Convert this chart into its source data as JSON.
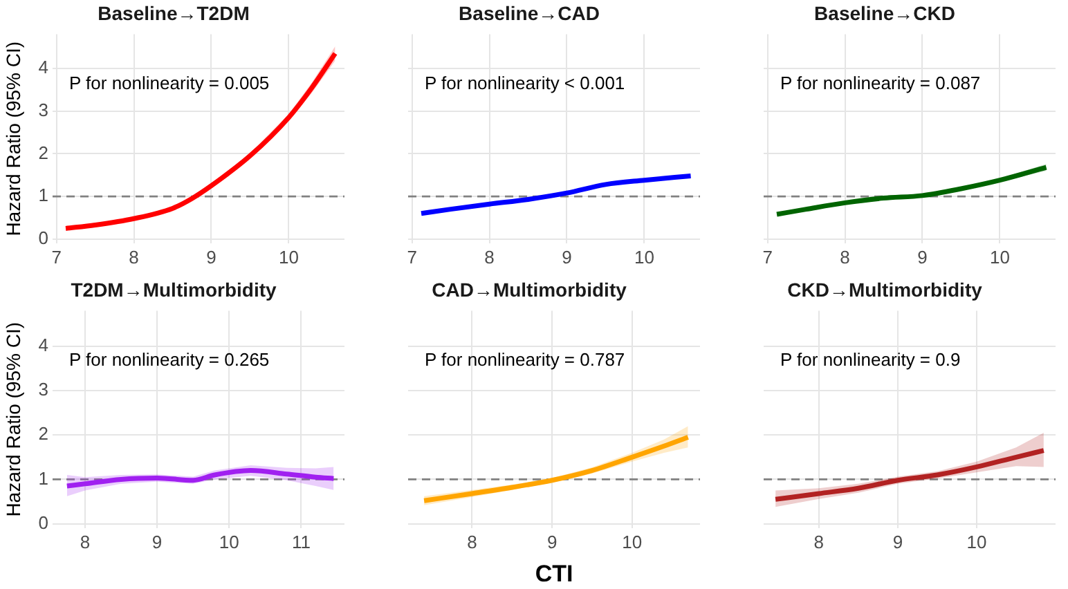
{
  "chart_data": [
    {
      "type": "line",
      "title": "Baseline→T2DM",
      "ylabel": "Hazard Ratio (95% CI)",
      "xlim": [
        6.95,
        10.72
      ],
      "xticks": [
        7,
        8,
        9,
        10
      ],
      "ylim": [
        -0.1,
        4.8
      ],
      "yticks": [
        0,
        1,
        2,
        3,
        4
      ],
      "grid": true,
      "annotations": [
        "P for nonlinearity = 0.005"
      ],
      "ref_lines": [
        {
          "axis": "y",
          "value": 1,
          "color": "#808080",
          "line_style": "dashed"
        }
      ],
      "x": [
        7.12,
        7.5,
        8,
        8.5,
        8.75,
        9,
        9.5,
        10,
        10.3,
        10.6
      ],
      "series": [
        {
          "color": "#ff0000",
          "values": [
            0.25,
            0.33,
            0.48,
            0.72,
            0.95,
            1.25,
            1.95,
            2.85,
            3.55,
            4.35
          ],
          "lower": [
            0.22,
            0.3,
            0.45,
            0.69,
            0.92,
            1.21,
            1.89,
            2.77,
            3.43,
            4.18
          ],
          "upper": [
            0.28,
            0.36,
            0.51,
            0.75,
            0.98,
            1.29,
            2.01,
            2.93,
            3.67,
            4.52
          ]
        }
      ]
    },
    {
      "type": "line",
      "title": "Baseline→CAD",
      "xlim": [
        6.95,
        10.72
      ],
      "xticks": [
        7,
        8,
        9,
        10
      ],
      "ylim": [
        -0.1,
        4.8
      ],
      "yticks": [
        0,
        1,
        2,
        3,
        4
      ],
      "grid": true,
      "tick_labels": "x",
      "annotations": [
        "P for nonlinearity < 0.001"
      ],
      "ref_lines": [
        {
          "axis": "y",
          "value": 1,
          "color": "#808080",
          "line_style": "dashed"
        }
      ],
      "x": [
        7.12,
        7.5,
        8,
        8.5,
        9,
        9.5,
        10,
        10.6
      ],
      "series": [
        {
          "color": "#0000ff",
          "values": [
            0.6,
            0.7,
            0.82,
            0.93,
            1.08,
            1.28,
            1.38,
            1.48
          ],
          "lower": [
            0.57,
            0.67,
            0.8,
            0.91,
            1.06,
            1.25,
            1.35,
            1.43
          ],
          "upper": [
            0.63,
            0.73,
            0.84,
            0.95,
            1.1,
            1.31,
            1.41,
            1.53
          ]
        }
      ]
    },
    {
      "type": "line",
      "title": "Baseline→CKD",
      "xlim": [
        6.95,
        10.72
      ],
      "xticks": [
        7,
        8,
        9,
        10
      ],
      "ylim": [
        -0.1,
        4.8
      ],
      "yticks": [
        0,
        1,
        2,
        3,
        4
      ],
      "grid": true,
      "tick_labels": "x",
      "annotations": [
        "P for nonlinearity = 0.087"
      ],
      "ref_lines": [
        {
          "axis": "y",
          "value": 1,
          "color": "#808080",
          "line_style": "dashed"
        }
      ],
      "x": [
        7.12,
        7.5,
        8,
        8.5,
        9,
        9.5,
        10,
        10.6
      ],
      "series": [
        {
          "color": "#006400",
          "values": [
            0.58,
            0.7,
            0.85,
            0.96,
            1.02,
            1.18,
            1.38,
            1.68
          ],
          "lower": [
            0.55,
            0.67,
            0.83,
            0.94,
            1,
            1.15,
            1.34,
            1.6
          ],
          "upper": [
            0.61,
            0.73,
            0.87,
            0.98,
            1.04,
            1.21,
            1.42,
            1.76
          ]
        }
      ]
    },
    {
      "type": "line",
      "title": "T2DM→Multimorbidity",
      "ylabel": "Hazard Ratio (95% CI)",
      "xlim": [
        7.55,
        11.6
      ],
      "xticks": [
        8,
        9,
        10,
        11
      ],
      "ylim": [
        -0.1,
        4.8
      ],
      "yticks": [
        0,
        1,
        2,
        3,
        4
      ],
      "grid": true,
      "annotations": [
        "P for nonlinearity = 0.265"
      ],
      "ref_lines": [
        {
          "axis": "y",
          "value": 1,
          "color": "#808080",
          "line_style": "dashed"
        }
      ],
      "x": [
        7.75,
        8,
        8.5,
        9,
        9.5,
        9.8,
        10.3,
        10.8,
        11.2,
        11.45
      ],
      "series": [
        {
          "color": "#a020f0",
          "values": [
            0.85,
            0.9,
            1.0,
            1.03,
            0.98,
            1.1,
            1.2,
            1.12,
            1.05,
            1.02
          ],
          "lower": [
            0.62,
            0.75,
            0.9,
            0.95,
            0.9,
            1.0,
            1.08,
            0.98,
            0.85,
            0.76
          ],
          "upper": [
            1.1,
            1.05,
            1.1,
            1.11,
            1.06,
            1.2,
            1.32,
            1.26,
            1.25,
            1.28
          ]
        }
      ]
    },
    {
      "type": "line",
      "title": "CAD→Multimorbidity",
      "xlabel": "CTI",
      "xlim": [
        7.2,
        10.85
      ],
      "xticks": [
        8,
        9,
        10
      ],
      "ylim": [
        -0.1,
        4.8
      ],
      "yticks": [
        0,
        1,
        2,
        3,
        4
      ],
      "grid": true,
      "tick_labels": "x",
      "annotations": [
        "P for nonlinearity = 0.787"
      ],
      "ref_lines": [
        {
          "axis": "y",
          "value": 1,
          "color": "#808080",
          "line_style": "dashed"
        }
      ],
      "x": [
        7.4,
        8,
        8.5,
        9,
        9.5,
        10,
        10.4,
        10.7
      ],
      "series": [
        {
          "color": "#ffa500",
          "values": [
            0.52,
            0.68,
            0.82,
            0.98,
            1.2,
            1.5,
            1.75,
            1.95
          ],
          "lower": [
            0.42,
            0.6,
            0.76,
            0.93,
            1.13,
            1.4,
            1.6,
            1.72
          ],
          "upper": [
            0.62,
            0.76,
            0.88,
            1.03,
            1.27,
            1.6,
            1.9,
            2.2
          ]
        }
      ]
    },
    {
      "type": "line",
      "title": "CKD→Multimorbidity",
      "xlim": [
        7.3,
        11.0
      ],
      "xticks": [
        8,
        9,
        10
      ],
      "ylim": [
        -0.1,
        4.8
      ],
      "yticks": [
        0,
        1,
        2,
        3,
        4
      ],
      "grid": true,
      "tick_labels": "x",
      "annotations": [
        "P for nonlinearity = 0.9"
      ],
      "ref_lines": [
        {
          "axis": "y",
          "value": 1,
          "color": "#808080",
          "line_style": "dashed"
        }
      ],
      "x": [
        7.45,
        8,
        8.5,
        9,
        9.5,
        10,
        10.5,
        10.85
      ],
      "series": [
        {
          "color": "#b22222",
          "values": [
            0.55,
            0.68,
            0.8,
            0.98,
            1.1,
            1.28,
            1.5,
            1.65
          ],
          "lower": [
            0.38,
            0.56,
            0.7,
            0.9,
            1.02,
            1.16,
            1.3,
            1.28
          ],
          "upper": [
            0.75,
            0.8,
            0.9,
            1.06,
            1.18,
            1.4,
            1.72,
            2.05
          ]
        }
      ]
    }
  ]
}
